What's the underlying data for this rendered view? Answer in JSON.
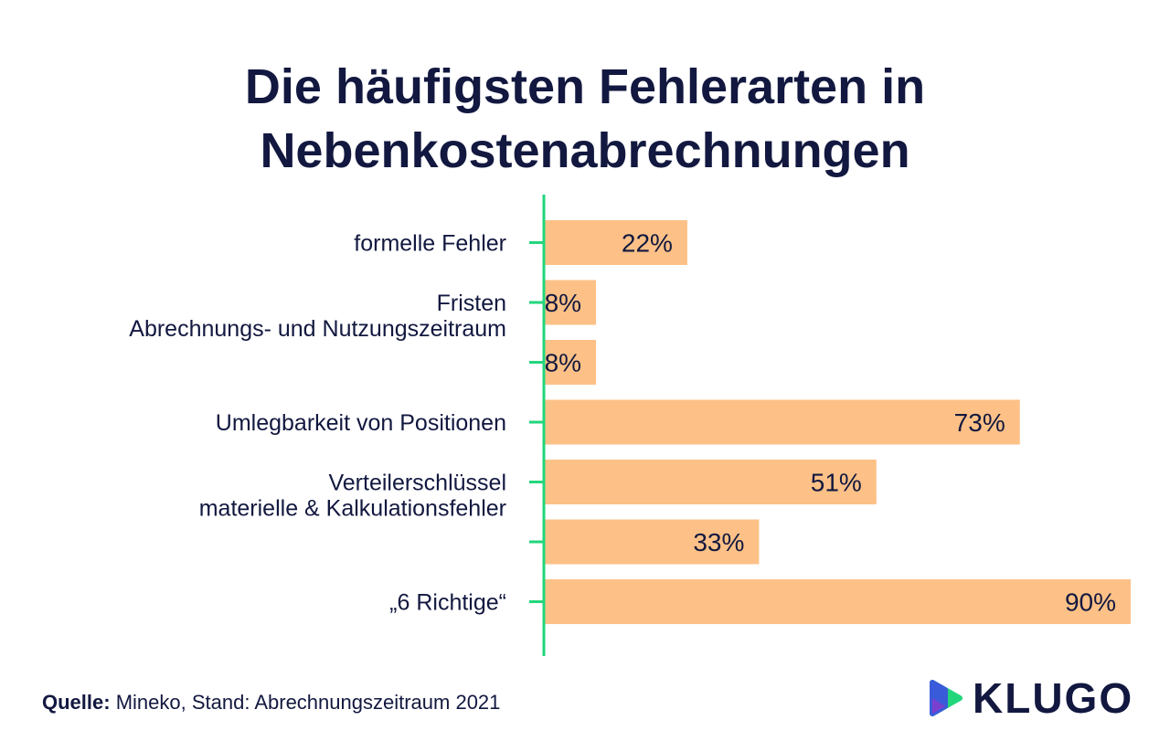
{
  "chart_data": {
    "type": "bar",
    "orientation": "horizontal",
    "title": "Die häufigsten Fehlerarten in Nebenkostenabrechnungen",
    "title_lines": [
      "Die häufigsten Fehlerarten in",
      "Nebenkostenabrechnungen"
    ],
    "categories": [
      "formelle Fehler",
      "Fristen",
      "Abrechnungs- und Nutzungszeitraum",
      "Umlegbarkeit von Positionen",
      "Verteilerschlüssel",
      "materielle & Kalkulationsfehler",
      "„6 Richtige“"
    ],
    "values": [
      22,
      8,
      8,
      73,
      51,
      33,
      90
    ],
    "value_labels": [
      "22%",
      "8%",
      "8%",
      "73%",
      "51%",
      "33%",
      "90%"
    ],
    "xlim": [
      0,
      90
    ],
    "grid": false,
    "bar_color": "#fdc187",
    "axis_color": "#22d67b",
    "text_color": "#12183f"
  },
  "source": {
    "label": "Quelle:",
    "text": " Mineko, Stand: Abrechnungszeitraum 2021"
  },
  "logo": {
    "text": "KLUGO",
    "icon": "klugo-play-icon"
  }
}
